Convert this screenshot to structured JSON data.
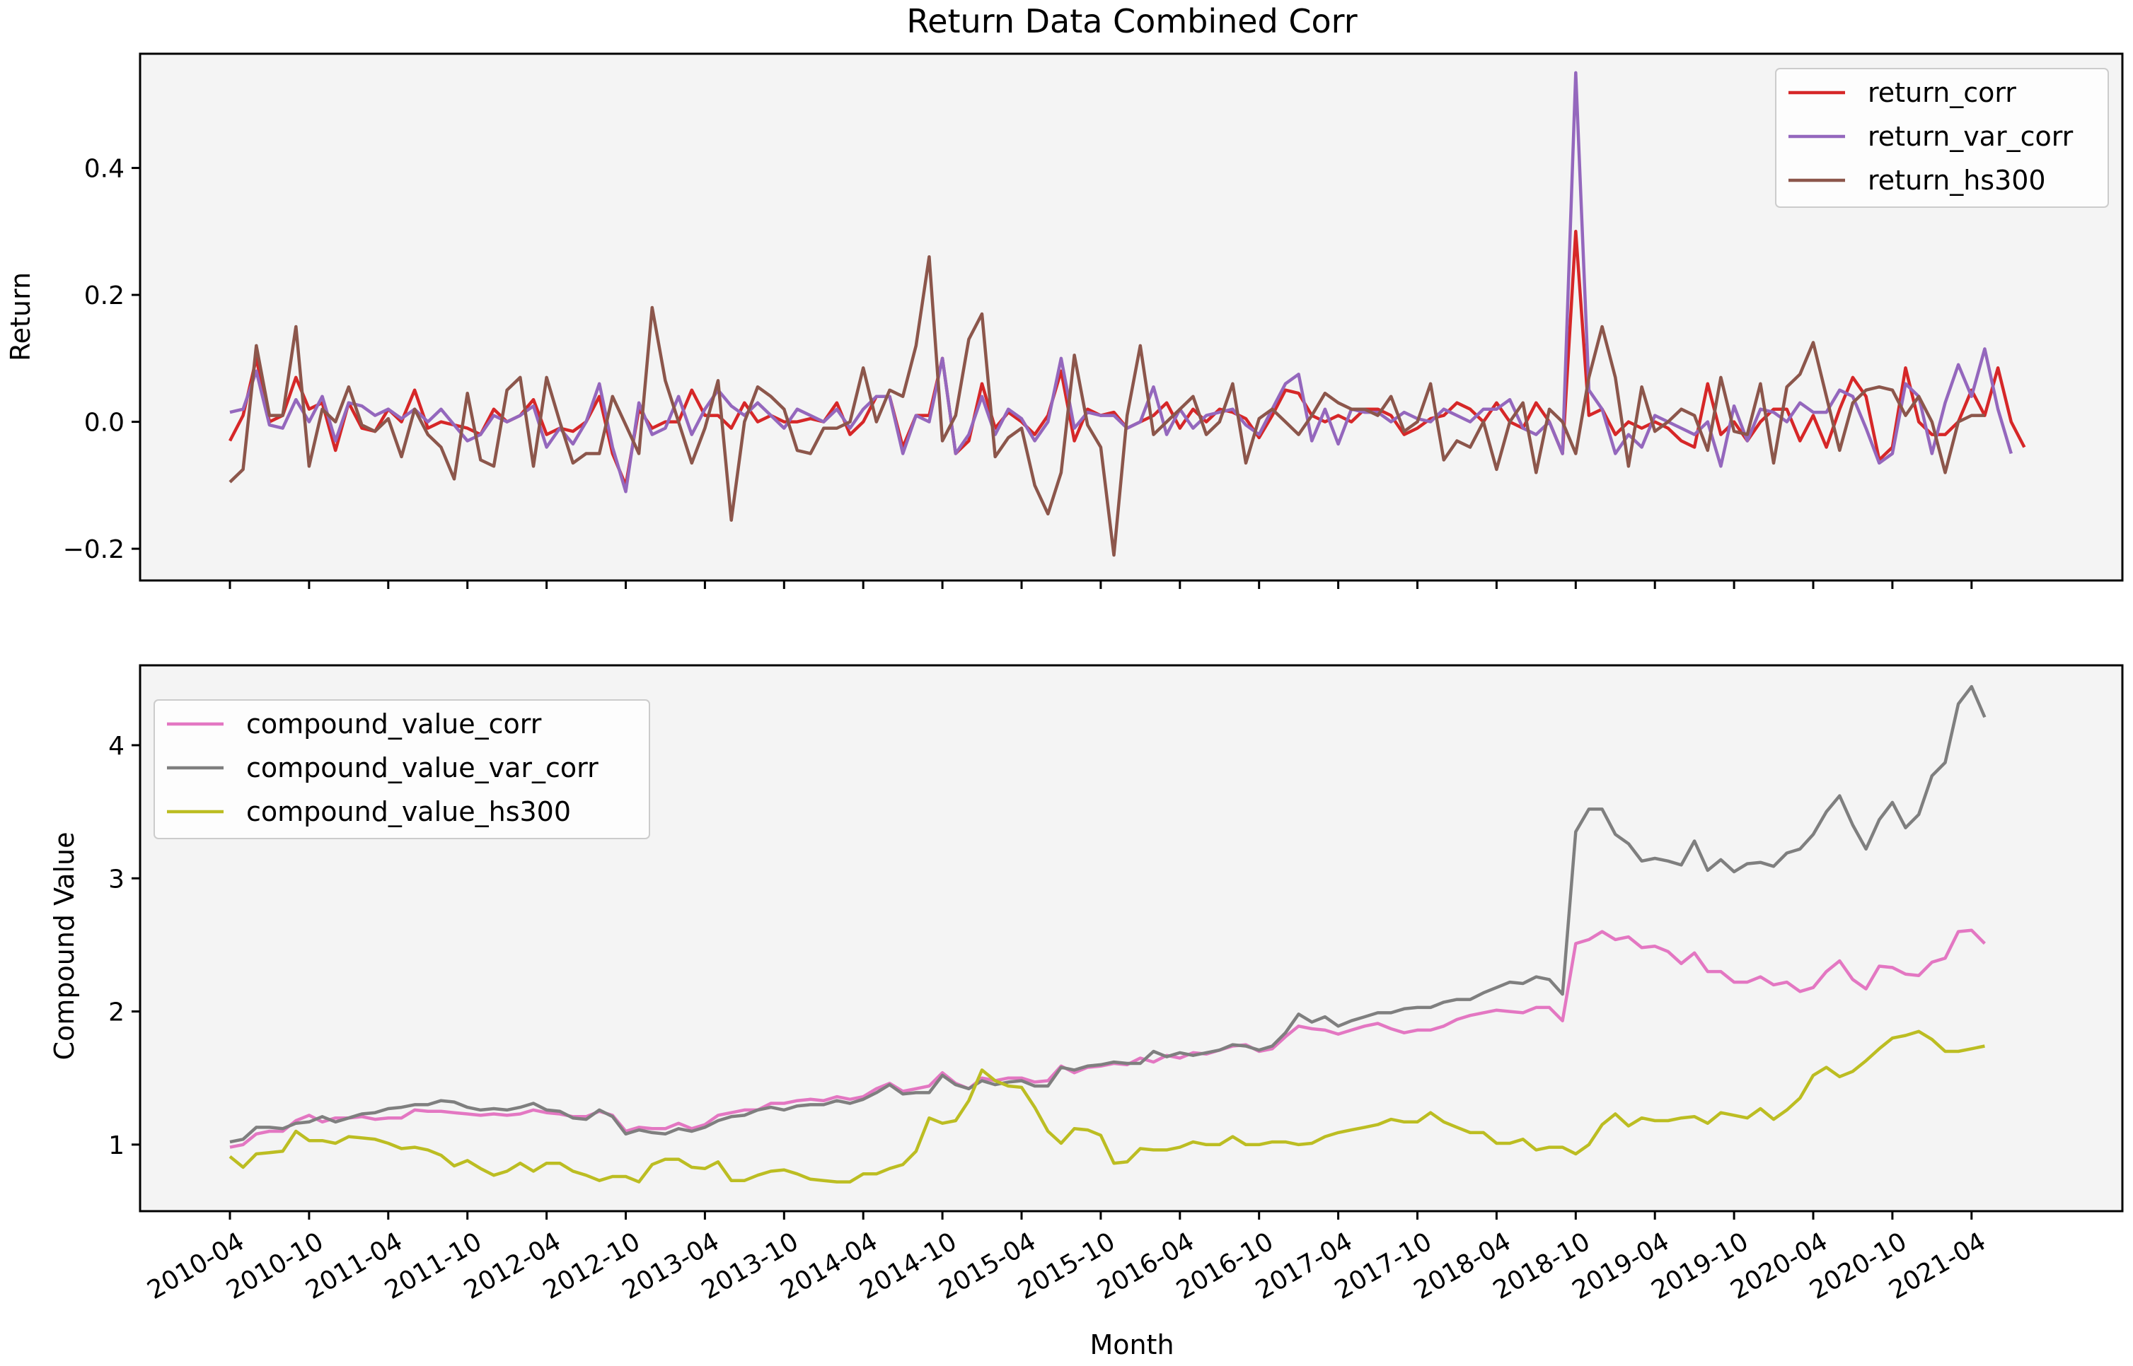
{
  "figure": {
    "title": "Return Data Combined Corr",
    "xlabel": "Month",
    "x_tick_labels": [
      "2010-04",
      "2010-10",
      "2011-04",
      "2011-10",
      "2012-04",
      "2012-10",
      "2013-04",
      "2013-10",
      "2014-04",
      "2014-10",
      "2015-04",
      "2015-10",
      "2016-04",
      "2016-10",
      "2017-04",
      "2017-10",
      "2018-04",
      "2018-10",
      "2019-04",
      "2019-10",
      "2020-04",
      "2020-10",
      "2021-04"
    ]
  },
  "chart_data": [
    {
      "type": "line",
      "title": "Return Data Combined Corr",
      "xlabel": "",
      "ylabel": "Return",
      "ylim": [
        -0.25,
        0.58
      ],
      "yticks": [
        -0.2,
        0.0,
        0.2,
        0.4
      ],
      "ytick_labels": [
        "−0.2",
        "0.0",
        "0.2",
        "0.4"
      ],
      "x_start": "2010-04",
      "x_tick_labels": [
        "2010-04",
        "2010-10",
        "2011-04",
        "2011-10",
        "2012-04",
        "2012-10",
        "2013-04",
        "2013-10",
        "2014-04",
        "2014-10",
        "2015-04",
        "2015-10",
        "2016-04",
        "2016-10",
        "2017-04",
        "2017-10",
        "2018-04",
        "2018-10",
        "2019-04",
        "2019-10",
        "2020-04",
        "2020-10",
        "2021-04"
      ],
      "grid": false,
      "legend": "upper right",
      "background": "#f4f4f4",
      "series": [
        {
          "name": "return_corr",
          "color": "#d62728",
          "values": [
            -0.03,
            0.01,
            0.1,
            0.0,
            0.01,
            0.07,
            0.02,
            0.03,
            -0.045,
            0.03,
            -0.01,
            -0.015,
            0.02,
            0.0,
            0.05,
            -0.01,
            0.0,
            -0.005,
            -0.01,
            -0.02,
            0.02,
            0.0,
            0.01,
            0.035,
            -0.02,
            -0.01,
            -0.015,
            0.0,
            0.04,
            -0.05,
            -0.1,
            0.02,
            -0.01,
            0.0,
            0.0,
            0.05,
            0.01,
            0.01,
            -0.01,
            0.03,
            0.0,
            0.01,
            0.0,
            0.0,
            0.005,
            0.0,
            0.03,
            -0.02,
            0.0,
            0.04,
            0.04,
            -0.04,
            0.01,
            0.01,
            0.1,
            -0.05,
            -0.03,
            0.06,
            -0.01,
            0.015,
            0.0,
            -0.02,
            0.01,
            0.08,
            -0.03,
            0.02,
            0.01,
            0.015,
            -0.01,
            0.0,
            0.01,
            0.03,
            -0.01,
            0.02,
            0.0,
            0.02,
            0.015,
            0.005,
            -0.025,
            0.01,
            0.05,
            0.045,
            0.01,
            0.0,
            0.01,
            0.0,
            0.02,
            0.02,
            0.01,
            -0.02,
            -0.01,
            0.005,
            0.01,
            0.03,
            0.02,
            0.0,
            0.03,
            0.0,
            -0.01,
            0.03,
            0.0,
            -0.05,
            0.3,
            0.01,
            0.02,
            -0.02,
            0.0,
            -0.01,
            0.0,
            -0.01,
            -0.03,
            -0.04,
            0.06,
            -0.02,
            0.0,
            -0.03,
            0.0,
            0.02,
            0.02,
            -0.03,
            0.01,
            -0.04,
            0.02,
            0.07,
            0.04,
            -0.06,
            -0.04,
            0.085,
            0.0,
            -0.02,
            -0.02,
            0.0,
            0.05,
            0.01,
            0.085,
            0.0,
            -0.04
          ]
        },
        {
          "name": "return_var_corr",
          "color": "#9467bd",
          "values": [
            0.015,
            0.02,
            0.08,
            -0.005,
            -0.01,
            0.035,
            0.0,
            0.04,
            -0.03,
            0.03,
            0.025,
            0.01,
            0.02,
            0.005,
            0.02,
            0.0,
            0.02,
            -0.005,
            -0.03,
            -0.02,
            0.01,
            0.0,
            0.01,
            0.025,
            -0.04,
            -0.01,
            -0.035,
            0.0,
            0.06,
            -0.04,
            -0.11,
            0.03,
            -0.02,
            -0.01,
            0.04,
            -0.02,
            0.02,
            0.05,
            0.025,
            0.01,
            0.03,
            0.01,
            -0.01,
            0.02,
            0.01,
            0.0,
            0.02,
            -0.01,
            0.02,
            0.04,
            0.04,
            -0.05,
            0.01,
            0.0,
            0.1,
            -0.05,
            -0.02,
            0.04,
            -0.02,
            0.02,
            0.005,
            -0.03,
            0.0,
            0.1,
            -0.01,
            0.015,
            0.01,
            0.01,
            -0.01,
            0.0,
            0.055,
            -0.02,
            0.02,
            -0.01,
            0.01,
            0.015,
            0.02,
            -0.005,
            -0.02,
            0.02,
            0.06,
            0.075,
            -0.03,
            0.02,
            -0.035,
            0.02,
            0.015,
            0.015,
            0.0,
            0.015,
            0.005,
            0.0,
            0.02,
            0.01,
            0.0,
            0.02,
            0.02,
            0.035,
            -0.01,
            -0.02,
            0.0,
            -0.05,
            0.55,
            0.05,
            0.02,
            -0.05,
            -0.02,
            -0.04,
            0.01,
            0.0,
            -0.01,
            -0.02,
            0.0,
            -0.07,
            0.025,
            -0.03,
            0.02,
            0.015,
            0.0,
            0.03,
            0.015,
            0.015,
            0.05,
            0.04,
            -0.01,
            -0.065,
            -0.05,
            0.06,
            0.04,
            -0.05,
            0.03,
            0.09,
            0.04,
            0.115,
            0.02,
            -0.05
          ]
        },
        {
          "name": "return_hs300",
          "color": "#8c564b",
          "values": [
            -0.095,
            -0.075,
            0.12,
            0.01,
            0.01,
            0.15,
            -0.07,
            0.02,
            0.0,
            0.055,
            -0.005,
            -0.015,
            0.005,
            -0.055,
            0.02,
            -0.02,
            -0.04,
            -0.09,
            0.045,
            -0.06,
            -0.07,
            0.05,
            0.07,
            -0.07,
            0.07,
            0.0,
            -0.065,
            -0.05,
            -0.05,
            0.04,
            -0.005,
            -0.05,
            0.18,
            0.065,
            0.0,
            -0.065,
            -0.01,
            0.065,
            -0.155,
            0.0,
            0.055,
            0.04,
            0.02,
            -0.045,
            -0.05,
            -0.01,
            -0.01,
            0.0,
            0.085,
            0.0,
            0.05,
            0.04,
            0.12,
            0.26,
            -0.03,
            0.01,
            0.13,
            0.17,
            -0.055,
            -0.025,
            -0.01,
            -0.1,
            -0.145,
            -0.08,
            0.105,
            -0.005,
            -0.04,
            -0.21,
            0.01,
            0.12,
            -0.02,
            0.0,
            0.02,
            0.04,
            -0.02,
            0.0,
            0.06,
            -0.065,
            0.005,
            0.02,
            0.0,
            -0.02,
            0.01,
            0.045,
            0.03,
            0.02,
            0.02,
            0.01,
            0.04,
            -0.015,
            0.0,
            0.06,
            -0.06,
            -0.03,
            -0.04,
            0.0,
            -0.075,
            0.0,
            0.03,
            -0.08,
            0.02,
            0.0,
            -0.05,
            0.07,
            0.15,
            0.07,
            -0.07,
            0.055,
            -0.015,
            0.0,
            0.02,
            0.01,
            -0.045,
            0.07,
            -0.015,
            -0.02,
            0.06,
            -0.065,
            0.055,
            0.075,
            0.125,
            0.04,
            -0.045,
            0.03,
            0.05,
            0.055,
            0.05,
            0.01,
            0.04,
            0.0,
            -0.08,
            0.0,
            0.01,
            0.01
          ]
        }
      ]
    },
    {
      "type": "line",
      "xlabel": "Month",
      "ylabel": "Compound Value",
      "ylim": [
        0.5,
        4.6
      ],
      "yticks": [
        1,
        2,
        3,
        4
      ],
      "ytick_labels": [
        "1",
        "2",
        "3",
        "4"
      ],
      "x_start": "2010-04",
      "x_tick_labels": [
        "2010-04",
        "2010-10",
        "2011-04",
        "2011-10",
        "2012-04",
        "2012-10",
        "2013-04",
        "2013-10",
        "2014-04",
        "2014-10",
        "2015-04",
        "2015-10",
        "2016-04",
        "2016-10",
        "2017-04",
        "2017-10",
        "2018-04",
        "2018-10",
        "2019-04",
        "2019-10",
        "2020-04",
        "2020-10",
        "2021-04"
      ],
      "grid": false,
      "legend": "upper left",
      "background": "#f4f4f4",
      "series": [
        {
          "name": "compound_value_corr",
          "color": "#e377c2",
          "values": [
            0.98,
            1.0,
            1.08,
            1.1,
            1.1,
            1.18,
            1.22,
            1.17,
            1.2,
            1.2,
            1.21,
            1.19,
            1.2,
            1.2,
            1.26,
            1.25,
            1.25,
            1.24,
            1.23,
            1.22,
            1.23,
            1.22,
            1.23,
            1.26,
            1.24,
            1.23,
            1.21,
            1.21,
            1.25,
            1.22,
            1.1,
            1.13,
            1.12,
            1.12,
            1.16,
            1.12,
            1.15,
            1.22,
            1.24,
            1.26,
            1.26,
            1.31,
            1.31,
            1.33,
            1.34,
            1.33,
            1.36,
            1.34,
            1.36,
            1.42,
            1.46,
            1.4,
            1.42,
            1.44,
            1.54,
            1.46,
            1.42,
            1.5,
            1.48,
            1.5,
            1.5,
            1.47,
            1.48,
            1.59,
            1.54,
            1.58,
            1.59,
            1.61,
            1.6,
            1.65,
            1.62,
            1.67,
            1.65,
            1.69,
            1.68,
            1.71,
            1.74,
            1.75,
            1.7,
            1.72,
            1.81,
            1.89,
            1.87,
            1.86,
            1.83,
            1.86,
            1.89,
            1.91,
            1.87,
            1.84,
            1.86,
            1.86,
            1.89,
            1.94,
            1.97,
            1.99,
            2.01,
            2.0,
            1.99,
            2.03,
            2.03,
            1.93,
            2.51,
            2.54,
            2.6,
            2.54,
            2.56,
            2.48,
            2.49,
            2.45,
            2.36,
            2.44,
            2.3,
            2.3,
            2.22,
            2.22,
            2.26,
            2.2,
            2.22,
            2.15,
            2.18,
            2.3,
            2.38,
            2.24,
            2.17,
            2.34,
            2.33,
            2.28,
            2.27,
            2.37,
            2.4,
            2.6,
            2.61,
            2.51
          ]
        },
        {
          "name": "compound_value_var_corr",
          "color": "#7f7f7f",
          "values": [
            1.02,
            1.04,
            1.13,
            1.13,
            1.12,
            1.16,
            1.17,
            1.21,
            1.17,
            1.2,
            1.23,
            1.24,
            1.27,
            1.28,
            1.3,
            1.3,
            1.33,
            1.32,
            1.28,
            1.26,
            1.27,
            1.26,
            1.28,
            1.31,
            1.26,
            1.25,
            1.2,
            1.19,
            1.26,
            1.21,
            1.08,
            1.11,
            1.09,
            1.08,
            1.12,
            1.1,
            1.13,
            1.18,
            1.21,
            1.22,
            1.26,
            1.28,
            1.26,
            1.29,
            1.3,
            1.3,
            1.33,
            1.31,
            1.34,
            1.39,
            1.45,
            1.38,
            1.39,
            1.39,
            1.52,
            1.45,
            1.42,
            1.48,
            1.45,
            1.47,
            1.48,
            1.44,
            1.44,
            1.58,
            1.56,
            1.59,
            1.6,
            1.62,
            1.61,
            1.61,
            1.7,
            1.66,
            1.69,
            1.67,
            1.69,
            1.71,
            1.75,
            1.74,
            1.71,
            1.74,
            1.84,
            1.98,
            1.92,
            1.96,
            1.89,
            1.93,
            1.96,
            1.99,
            1.99,
            2.02,
            2.03,
            2.03,
            2.07,
            2.09,
            2.09,
            2.14,
            2.18,
            2.22,
            2.21,
            2.26,
            2.24,
            2.13,
            3.35,
            3.52,
            3.52,
            3.33,
            3.26,
            3.13,
            3.15,
            3.13,
            3.1,
            3.28,
            3.06,
            3.14,
            3.05,
            3.11,
            3.12,
            3.09,
            3.19,
            3.22,
            3.33,
            3.5,
            3.62,
            3.4,
            3.22,
            3.44,
            3.57,
            3.38,
            3.48,
            3.77,
            3.87,
            4.31,
            4.44,
            4.21
          ]
        },
        {
          "name": "compound_value_hs300",
          "color": "#bcbd22",
          "values": [
            0.91,
            0.83,
            0.93,
            0.94,
            0.95,
            1.1,
            1.03,
            1.03,
            1.01,
            1.06,
            1.05,
            1.04,
            1.01,
            0.97,
            0.98,
            0.96,
            0.92,
            0.84,
            0.88,
            0.82,
            0.77,
            0.8,
            0.86,
            0.8,
            0.86,
            0.86,
            0.8,
            0.77,
            0.73,
            0.76,
            0.76,
            0.72,
            0.85,
            0.89,
            0.89,
            0.83,
            0.82,
            0.87,
            0.73,
            0.73,
            0.77,
            0.8,
            0.81,
            0.78,
            0.74,
            0.73,
            0.72,
            0.72,
            0.78,
            0.78,
            0.82,
            0.85,
            0.95,
            1.2,
            1.16,
            1.18,
            1.33,
            1.56,
            1.48,
            1.44,
            1.43,
            1.28,
            1.1,
            1.01,
            1.12,
            1.11,
            1.07,
            0.86,
            0.87,
            0.97,
            0.96,
            0.96,
            0.98,
            1.02,
            1.0,
            1.0,
            1.06,
            1.0,
            1.0,
            1.02,
            1.02,
            1.0,
            1.01,
            1.06,
            1.09,
            1.11,
            1.13,
            1.15,
            1.19,
            1.17,
            1.17,
            1.24,
            1.17,
            1.13,
            1.09,
            1.09,
            1.01,
            1.01,
            1.04,
            0.96,
            0.98,
            0.98,
            0.93,
            1.0,
            1.15,
            1.23,
            1.14,
            1.2,
            1.18,
            1.18,
            1.2,
            1.21,
            1.16,
            1.24,
            1.22,
            1.2,
            1.27,
            1.19,
            1.26,
            1.35,
            1.52,
            1.58,
            1.51,
            1.55,
            1.63,
            1.72,
            1.8,
            1.82,
            1.85,
            1.79,
            1.7,
            1.7,
            1.72,
            1.74
          ]
        }
      ]
    }
  ]
}
